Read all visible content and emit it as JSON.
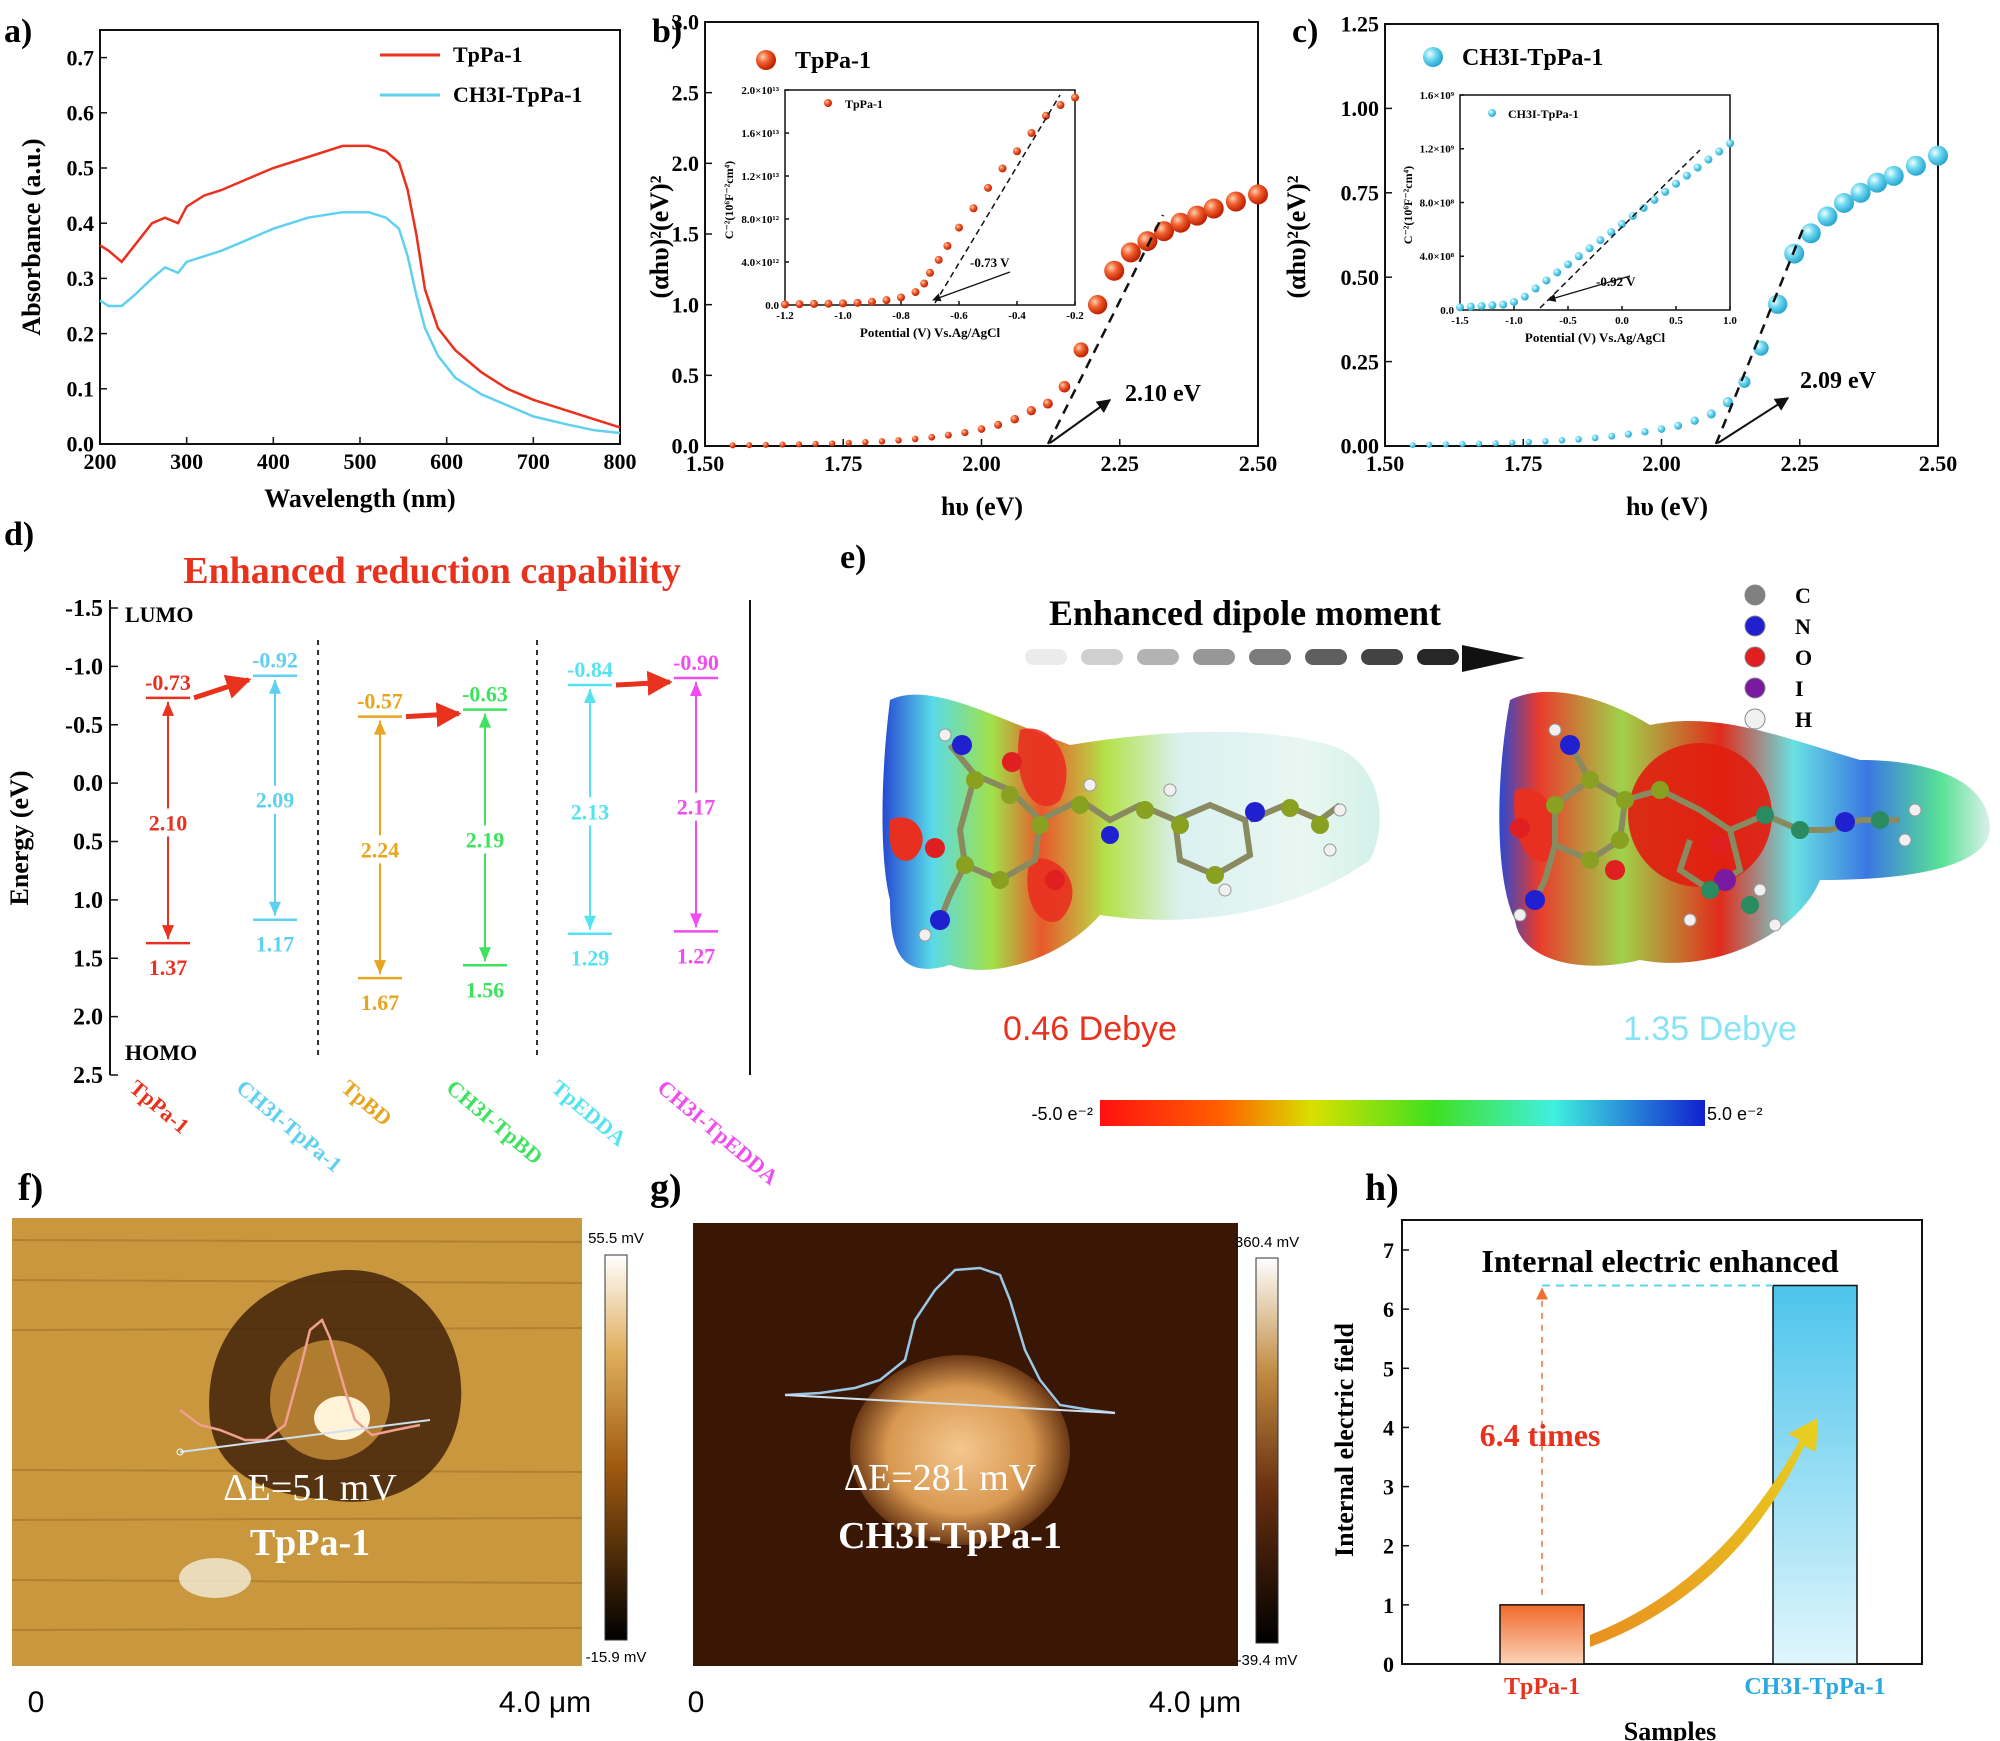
{
  "colors": {
    "red": "#e8321e",
    "blue": "#5fd0ef",
    "orange": "#e8a51f",
    "green": "#3fe25f",
    "cyan": "#55e3ef",
    "magenta": "#f04cf0",
    "black": "#111111"
  },
  "panels": {
    "a": {
      "label": "a)"
    },
    "b": {
      "label": "b)"
    },
    "c": {
      "label": "c)"
    },
    "d": {
      "label": "d)"
    },
    "e": {
      "label": "e)"
    },
    "f": {
      "label": "f)"
    },
    "g": {
      "label": "g)"
    },
    "h": {
      "label": "h)"
    }
  },
  "chart_data": [
    {
      "id": "a",
      "type": "line",
      "xlabel": "Wavelength (nm)",
      "ylabel": "Absorbance (a.u.)",
      "xlim": [
        200,
        800
      ],
      "ylim": [
        0,
        0.75
      ],
      "xticks": [
        "200",
        "300",
        "400",
        "500",
        "600",
        "700",
        "800"
      ],
      "yticks": [
        "0.0",
        "0.1",
        "0.2",
        "0.3",
        "0.4",
        "0.5",
        "0.6",
        "0.7"
      ],
      "legend": [
        "TpPa-1",
        "CH3I-TpPa-1"
      ],
      "series": [
        {
          "name": "TpPa-1",
          "x": [
            200,
            210,
            225,
            240,
            260,
            275,
            290,
            300,
            320,
            340,
            370,
            400,
            440,
            480,
            510,
            530,
            545,
            555,
            565,
            575,
            590,
            610,
            640,
            670,
            700,
            740,
            770,
            800
          ],
          "y": [
            0.36,
            0.35,
            0.33,
            0.36,
            0.4,
            0.41,
            0.4,
            0.43,
            0.45,
            0.46,
            0.48,
            0.5,
            0.52,
            0.54,
            0.54,
            0.53,
            0.51,
            0.46,
            0.38,
            0.28,
            0.21,
            0.17,
            0.13,
            0.1,
            0.08,
            0.06,
            0.045,
            0.03
          ]
        },
        {
          "name": "CH3I-TpPa-1",
          "x": [
            200,
            210,
            225,
            240,
            260,
            275,
            290,
            300,
            320,
            340,
            370,
            400,
            440,
            480,
            510,
            530,
            545,
            555,
            565,
            575,
            590,
            610,
            640,
            670,
            700,
            740,
            770,
            800
          ],
          "y": [
            0.26,
            0.25,
            0.25,
            0.27,
            0.3,
            0.32,
            0.31,
            0.33,
            0.34,
            0.35,
            0.37,
            0.39,
            0.41,
            0.42,
            0.42,
            0.41,
            0.39,
            0.34,
            0.27,
            0.21,
            0.16,
            0.12,
            0.09,
            0.07,
            0.05,
            0.035,
            0.025,
            0.02
          ]
        }
      ]
    },
    {
      "id": "b",
      "type": "scatter",
      "xlabel": "hυ (eV)",
      "ylabel": "(αhυ)²(eV)²",
      "xlim": [
        1.5,
        2.5
      ],
      "ylim": [
        0,
        3.0
      ],
      "xticks": [
        "1.50",
        "1.75",
        "2.00",
        "2.25",
        "2.50"
      ],
      "yticks": [
        "0.0",
        "0.5",
        "1.0",
        "1.5",
        "2.0",
        "2.5",
        "3.0"
      ],
      "legend": [
        "TpPa-1"
      ],
      "annotation": "2.10 eV",
      "series": [
        {
          "name": "TpPa-1",
          "x": [
            1.55,
            1.58,
            1.61,
            1.64,
            1.67,
            1.7,
            1.73,
            1.76,
            1.79,
            1.82,
            1.85,
            1.88,
            1.91,
            1.94,
            1.97,
            2.0,
            2.03,
            2.06,
            2.09,
            2.12,
            2.15,
            2.18,
            2.21,
            2.24,
            2.27,
            2.3,
            2.33,
            2.36,
            2.39,
            2.42,
            2.46,
            2.5
          ],
          "y": [
            0.005,
            0.006,
            0.008,
            0.01,
            0.012,
            0.015,
            0.018,
            0.022,
            0.027,
            0.033,
            0.04,
            0.05,
            0.062,
            0.077,
            0.095,
            0.12,
            0.15,
            0.19,
            0.25,
            0.3,
            0.42,
            0.68,
            1.0,
            1.24,
            1.37,
            1.45,
            1.52,
            1.58,
            1.63,
            1.68,
            1.73,
            1.78
          ]
        }
      ],
      "inset": {
        "xlabel": "Potential (V) Vs.Ag/AgCl",
        "ylabel": "C⁻²(10⁶F⁻²cm⁴)",
        "xlim": [
          -1.2,
          -0.2
        ],
        "ylim": [
          0,
          20000000000000.0
        ],
        "xticks": [
          "-1.2",
          "-1.0",
          "-0.8",
          "-0.6",
          "-0.4",
          "-0.2"
        ],
        "yticks": [
          "0.0",
          "4.0×10¹²",
          "8.0×10¹²",
          "1.2×10¹³",
          "1.6×10¹³",
          "2.0×10¹³"
        ],
        "legend": "TpPa-1",
        "annotation": "-0.73 V",
        "x": [
          -1.2,
          -1.15,
          -1.1,
          -1.05,
          -1.0,
          -0.95,
          -0.9,
          -0.85,
          -0.8,
          -0.75,
          -0.72,
          -0.7,
          -0.67,
          -0.64,
          -0.6,
          -0.55,
          -0.5,
          -0.45,
          -0.4,
          -0.35,
          -0.3,
          -0.25,
          -0.2
        ],
        "y": [
          50000000000.0,
          80000000000.0,
          100000000000.0,
          120000000000.0,
          150000000000.0,
          200000000000.0,
          300000000000.0,
          450000000000.0,
          700000000000.0,
          1200000000000.0,
          2000000000000.0,
          3000000000000.0,
          4200000000000.0,
          5500000000000.0,
          7200000000000.0,
          9000000000000.0,
          10900000000000.0,
          12700000000000.0,
          14300000000000.0,
          16000000000000.0,
          17600000000000.0,
          18600000000000.0,
          19300000000000.0
        ]
      }
    },
    {
      "id": "c",
      "type": "scatter",
      "xlabel": "hυ (eV)",
      "ylabel": "(αhυ)²(eV)²",
      "xlim": [
        1.5,
        2.5
      ],
      "ylim": [
        0,
        1.25
      ],
      "xticks": [
        "1.50",
        "1.75",
        "2.00",
        "2.25",
        "2.50"
      ],
      "yticks": [
        "0.00",
        "0.25",
        "0.50",
        "0.75",
        "1.00",
        "1.25"
      ],
      "legend": [
        "CH3I-TpPa-1"
      ],
      "annotation": "2.09 eV",
      "series": [
        {
          "name": "CH3I-TpPa-1",
          "x": [
            1.55,
            1.58,
            1.61,
            1.64,
            1.67,
            1.7,
            1.73,
            1.76,
            1.79,
            1.82,
            1.85,
            1.88,
            1.91,
            1.94,
            1.97,
            2.0,
            2.03,
            2.06,
            2.09,
            2.12,
            2.15,
            2.18,
            2.21,
            2.24,
            2.27,
            2.3,
            2.33,
            2.36,
            2.39,
            2.42,
            2.46,
            2.5
          ],
          "y": [
            0.003,
            0.004,
            0.005,
            0.006,
            0.007,
            0.008,
            0.01,
            0.012,
            0.014,
            0.017,
            0.02,
            0.024,
            0.029,
            0.035,
            0.042,
            0.05,
            0.06,
            0.075,
            0.095,
            0.13,
            0.19,
            0.29,
            0.42,
            0.57,
            0.63,
            0.68,
            0.72,
            0.75,
            0.78,
            0.8,
            0.83,
            0.86
          ]
        }
      ],
      "inset": {
        "xlabel": "Potential (V) Vs.Ag/AgCl",
        "ylabel": "C⁻²(10⁶F⁻²cm⁴)",
        "xlim": [
          -1.5,
          1.0
        ],
        "ylim": [
          0,
          1600000000.0
        ],
        "xticks": [
          "-1.5",
          "-1.0",
          "-0.5",
          "0.0",
          "0.5",
          "1.0"
        ],
        "yticks": [
          "0.0",
          "4.0×10⁸",
          "8.0×10⁸",
          "1.2×10⁹",
          "1.6×10⁹"
        ],
        "legend": "CH3I-TpPa-1",
        "annotation": "-0.92 V",
        "x": [
          -1.5,
          -1.4,
          -1.3,
          -1.2,
          -1.1,
          -1.0,
          -0.9,
          -0.8,
          -0.7,
          -0.6,
          -0.5,
          -0.4,
          -0.3,
          -0.2,
          -0.1,
          0.0,
          0.1,
          0.2,
          0.3,
          0.4,
          0.5,
          0.6,
          0.7,
          0.8,
          0.9,
          1.0
        ],
        "y": [
          20000000.0,
          25000000.0,
          30000000.0,
          35000000.0,
          40000000.0,
          60000000.0,
          100000000.0,
          160000000.0,
          220000000.0,
          280000000.0,
          340000000.0,
          400000000.0,
          460000000.0,
          520000000.0,
          580000000.0,
          640000000.0,
          700000000.0,
          760000000.0,
          820000000.0,
          880000000.0,
          940000000.0,
          1000000000.0,
          1060000000.0,
          1120000000.0,
          1180000000.0,
          1240000000.0
        ]
      }
    },
    {
      "id": "d",
      "type": "bar",
      "title": "Enhanced reduction capability",
      "ylabel": "Energy (eV)",
      "ylim": [
        -1.5,
        2.5
      ],
      "inverted": true,
      "yticks": [
        "-1.5",
        "-1.0",
        "-0.5",
        "0.0",
        "0.5",
        "1.0",
        "1.5",
        "2.0",
        "2.5"
      ],
      "top_label": "LUMO",
      "bottom_label": "HOMO",
      "series": [
        {
          "name": "TpPa-1",
          "lumo": -0.73,
          "homo": 1.37,
          "gap": 2.1,
          "lumo_text": "-0.73",
          "homo_text": "1.37",
          "gap_text": "2.10",
          "color": "#e8321e"
        },
        {
          "name": "CH3I-TpPa-1",
          "lumo": -0.92,
          "homo": 1.17,
          "gap": 2.09,
          "lumo_text": "-0.92",
          "homo_text": "1.17",
          "gap_text": "2.09",
          "color": "#5fd0ef"
        },
        {
          "name": "TpBD",
          "lumo": -0.57,
          "homo": 1.67,
          "gap": 2.24,
          "lumo_text": "-0.57",
          "homo_text": "1.67",
          "gap_text": "2.24",
          "color": "#e8a51f"
        },
        {
          "name": "CH3I-TpBD",
          "lumo": -0.63,
          "homo": 1.56,
          "gap": 2.19,
          "lumo_text": "-0.63",
          "homo_text": "1.56",
          "gap_text": "2.19",
          "color": "#3fe25f"
        },
        {
          "name": "TpEDDA",
          "lumo": -0.84,
          "homo": 1.29,
          "gap": 2.13,
          "lumo_text": "-0.84",
          "homo_text": "1.29",
          "gap_text": "2.13",
          "color": "#55e3ef"
        },
        {
          "name": "CH3I-TpEDDA",
          "lumo": -0.9,
          "homo": 1.27,
          "gap": 2.17,
          "lumo_text": "-0.90",
          "homo_text": "1.27",
          "gap_text": "2.17",
          "color": "#f04cf0"
        }
      ]
    },
    {
      "id": "h",
      "type": "bar",
      "title": "Internal electric enhanced",
      "xlabel": "Samples",
      "ylabel": "Internal electric field",
      "ylim": [
        0,
        7
      ],
      "yticks": [
        "0",
        "1",
        "2",
        "3",
        "4",
        "5",
        "6",
        "7"
      ],
      "categories": [
        "TpPa-1",
        "CH3I-TpPa-1"
      ],
      "values": [
        1.0,
        6.4
      ],
      "annotation": "6.4 times"
    }
  ],
  "panel_e": {
    "title": "Enhanced dipole moment",
    "left_dipole": "0.46 Debye",
    "right_dipole": "1.35 Debye",
    "scale_min": "-5.0 e⁻²",
    "scale_max": "5.0 e⁻²",
    "legend": [
      {
        "symbol": "C",
        "color": "#808080"
      },
      {
        "symbol": "N",
        "color": "#2020d0"
      },
      {
        "symbol": "O",
        "color": "#e02020"
      },
      {
        "symbol": "I",
        "color": "#7a1aa0"
      },
      {
        "symbol": "H",
        "color": "#f0f0f0"
      }
    ]
  },
  "panel_f": {
    "delta": "ΔE=51 mV",
    "name": "TpPa-1",
    "scale_max": "55.5 mV",
    "scale_min": "-15.9 mV",
    "x_start": "0",
    "x_end": "4.0 μm"
  },
  "panel_g": {
    "delta": "ΔE=281 mV",
    "name": "CH3I-TpPa-1",
    "scale_max": "360.4 mV",
    "scale_min": "-39.4 mV",
    "x_start": "0",
    "x_end": "4.0 μm"
  }
}
